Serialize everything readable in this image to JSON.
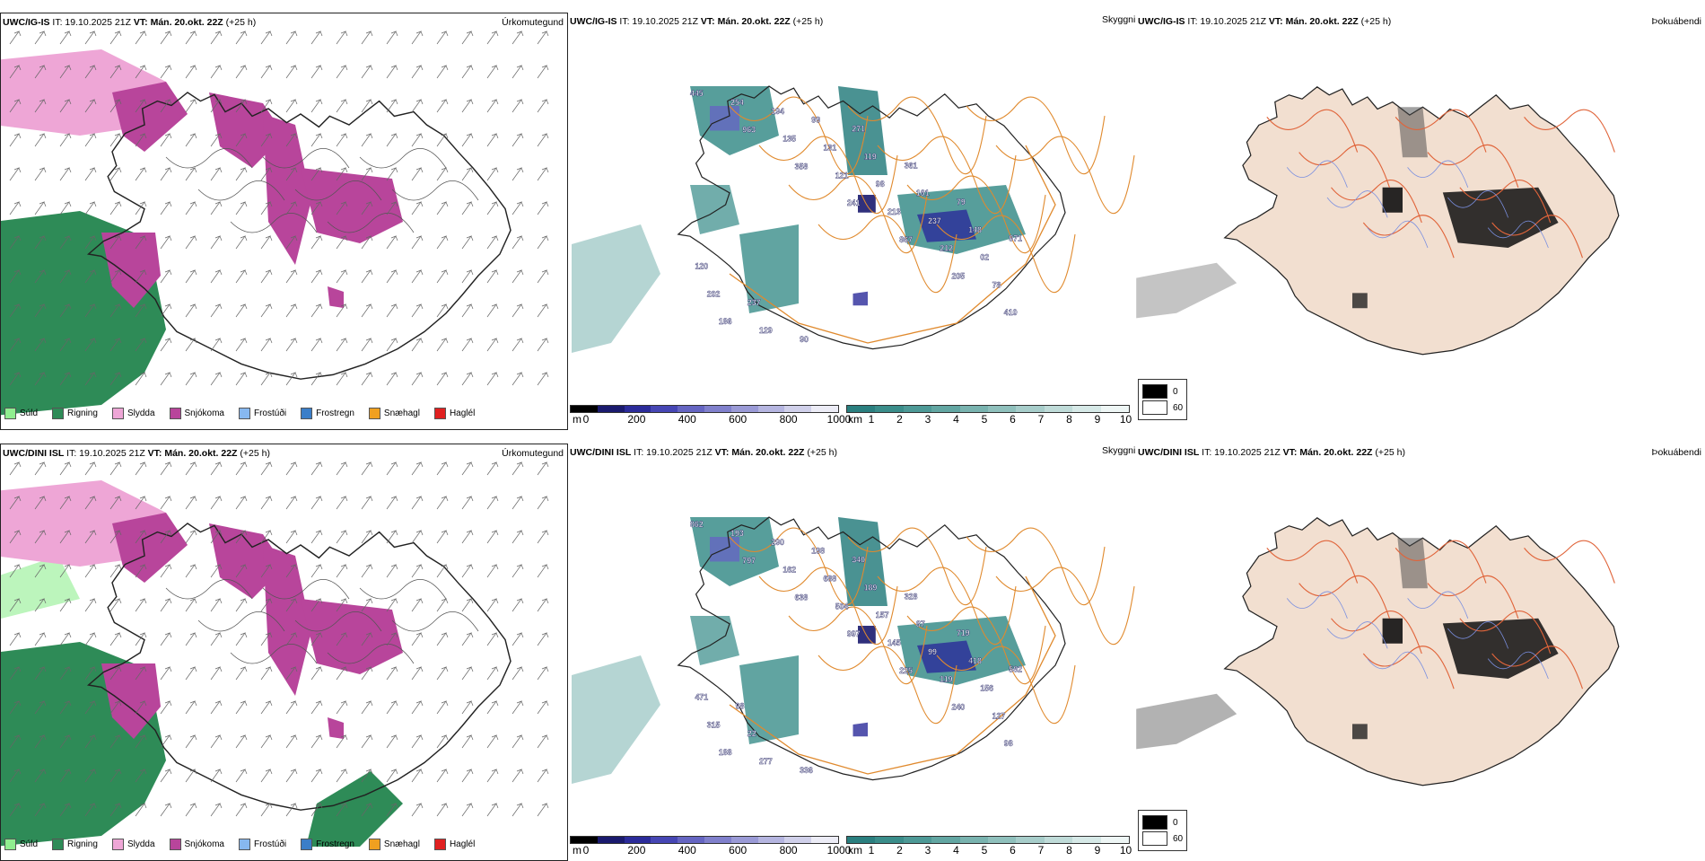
{
  "rows": [
    {
      "model": "UWC/IG-IS",
      "it": "IT: 19.10.2025 21Z",
      "vt_label": "VT:",
      "vt": "Mán. 20.okt. 22Z",
      "lead": "(+25 h)"
    },
    {
      "model": "UWC/DINI ISL",
      "it": "IT: 19.10.2025 21Z",
      "vt_label": "VT:",
      "vt": "Mán. 20.okt. 22Z",
      "lead": "(+25 h)"
    }
  ],
  "titles": {
    "precip": "Úrkomutegund",
    "vis": "Skyggni",
    "fog": "Þokuábendi"
  },
  "precip_legend": [
    {
      "label": "Súld",
      "color": "#90ee90"
    },
    {
      "label": "Rigning",
      "color": "#2e8b57"
    },
    {
      "label": "Slydda",
      "color": "#eea6d6"
    },
    {
      "label": "Snjókoma",
      "color": "#b8459b"
    },
    {
      "label": "Frostúði",
      "color": "#87b8f0"
    },
    {
      "label": "Frostregn",
      "color": "#3b7ec8"
    },
    {
      "label": "Snæhagl",
      "color": "#f0a020"
    },
    {
      "label": "Haglél",
      "color": "#e02020"
    }
  ],
  "ceiling_bar": {
    "unit": "m",
    "ticks": [
      "0",
      "200",
      "400",
      "600",
      "800",
      "1000"
    ],
    "colors": [
      "#000000",
      "#1a1a6e",
      "#2b2b9a",
      "#4646b4",
      "#6565c2",
      "#8080cc",
      "#9a9ad6",
      "#b5b5e0",
      "#d0d0ea",
      "#ececf6"
    ]
  },
  "vis_bar": {
    "unit": "km",
    "ticks": [
      "1",
      "2",
      "3",
      "4",
      "5",
      "6",
      "7",
      "8",
      "9",
      "10"
    ],
    "colors": [
      "#2a7f7f",
      "#3a8d8a",
      "#4d9996",
      "#62a6a2",
      "#79b3af",
      "#8fc0bc",
      "#a7cdca",
      "#bfdbd8",
      "#d6e9e7",
      "#eef6f5"
    ]
  },
  "fog_legend": [
    {
      "label": "0",
      "color": "#000000"
    },
    {
      "label": "60",
      "color": "#ffffff"
    }
  ],
  "ceiling_labels": [
    [
      "445",
      "963",
      "358",
      "241",
      "867",
      "205",
      "410",
      "254",
      "135",
      "121",
      "213",
      "212",
      "78",
      "186",
      "194",
      "131",
      "98",
      "237",
      "02",
      "202",
      "129",
      "99",
      "119",
      "161",
      "148",
      "120",
      "237",
      "90",
      "271",
      "361",
      "79",
      "971"
    ],
    [
      "862",
      "797",
      "638",
      "997",
      "225",
      "240",
      "98",
      "193",
      "162",
      "504",
      "145",
      "119",
      "127",
      "188",
      "290",
      "688",
      "157",
      "99",
      "156",
      "315",
      "277",
      "198",
      "189",
      "87",
      "418",
      "471",
      "22",
      "336",
      "340",
      "328",
      "719",
      "582",
      "98"
    ]
  ]
}
